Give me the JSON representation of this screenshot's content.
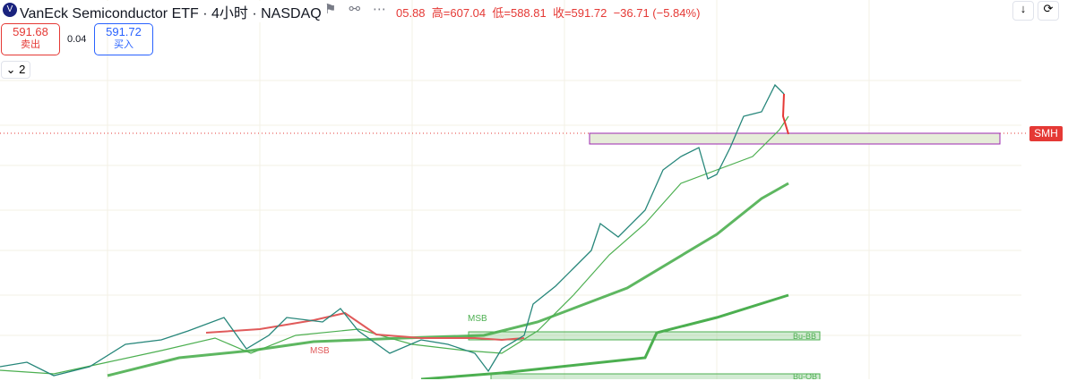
{
  "header": {
    "title": "VanEck Semiconductor ETF · 4小时 · NASDAQ",
    "open": "05.88",
    "high": "高=607.04",
    "low": "低=588.81",
    "close": "收=591.72",
    "change": "−36.71 (−5.84%)"
  },
  "trade": {
    "sell_price": "591.68",
    "sell_label": "卖出",
    "spread": "0.04",
    "buy_price": "591.72",
    "buy_label": "买入"
  },
  "indicators_toggle": "2",
  "annotations": {
    "msb_1": "MSB",
    "msb_2": "MSB",
    "zone_1": "Bu-BB",
    "zone_2": "Bu-OB"
  },
  "price_tag": "SMH"
}
